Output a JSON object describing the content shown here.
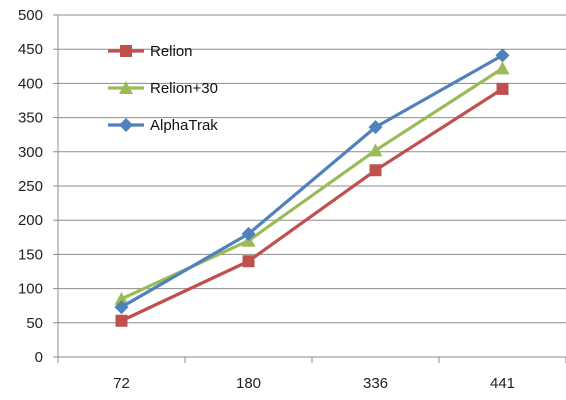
{
  "chart_data": {
    "type": "line",
    "title": "",
    "xlabel": "",
    "ylabel": "",
    "categories": [
      "72",
      "180",
      "336",
      "441"
    ],
    "ylim": [
      0,
      500
    ],
    "yticks": [
      0,
      50,
      100,
      150,
      200,
      250,
      300,
      350,
      400,
      450,
      500
    ],
    "grid": "horizontal",
    "legend_position": "top-left",
    "series": [
      {
        "name": "Relion",
        "values": [
          53,
          140,
          273,
          392
        ],
        "color": "#C0504D",
        "marker": "square"
      },
      {
        "name": "Relion+30",
        "values": [
          85,
          170,
          302,
          422
        ],
        "color": "#9BBB59",
        "marker": "triangle"
      },
      {
        "name": "AlphaTrak",
        "values": [
          73,
          180,
          336,
          441
        ],
        "color": "#4F81BD",
        "marker": "diamond"
      }
    ]
  }
}
